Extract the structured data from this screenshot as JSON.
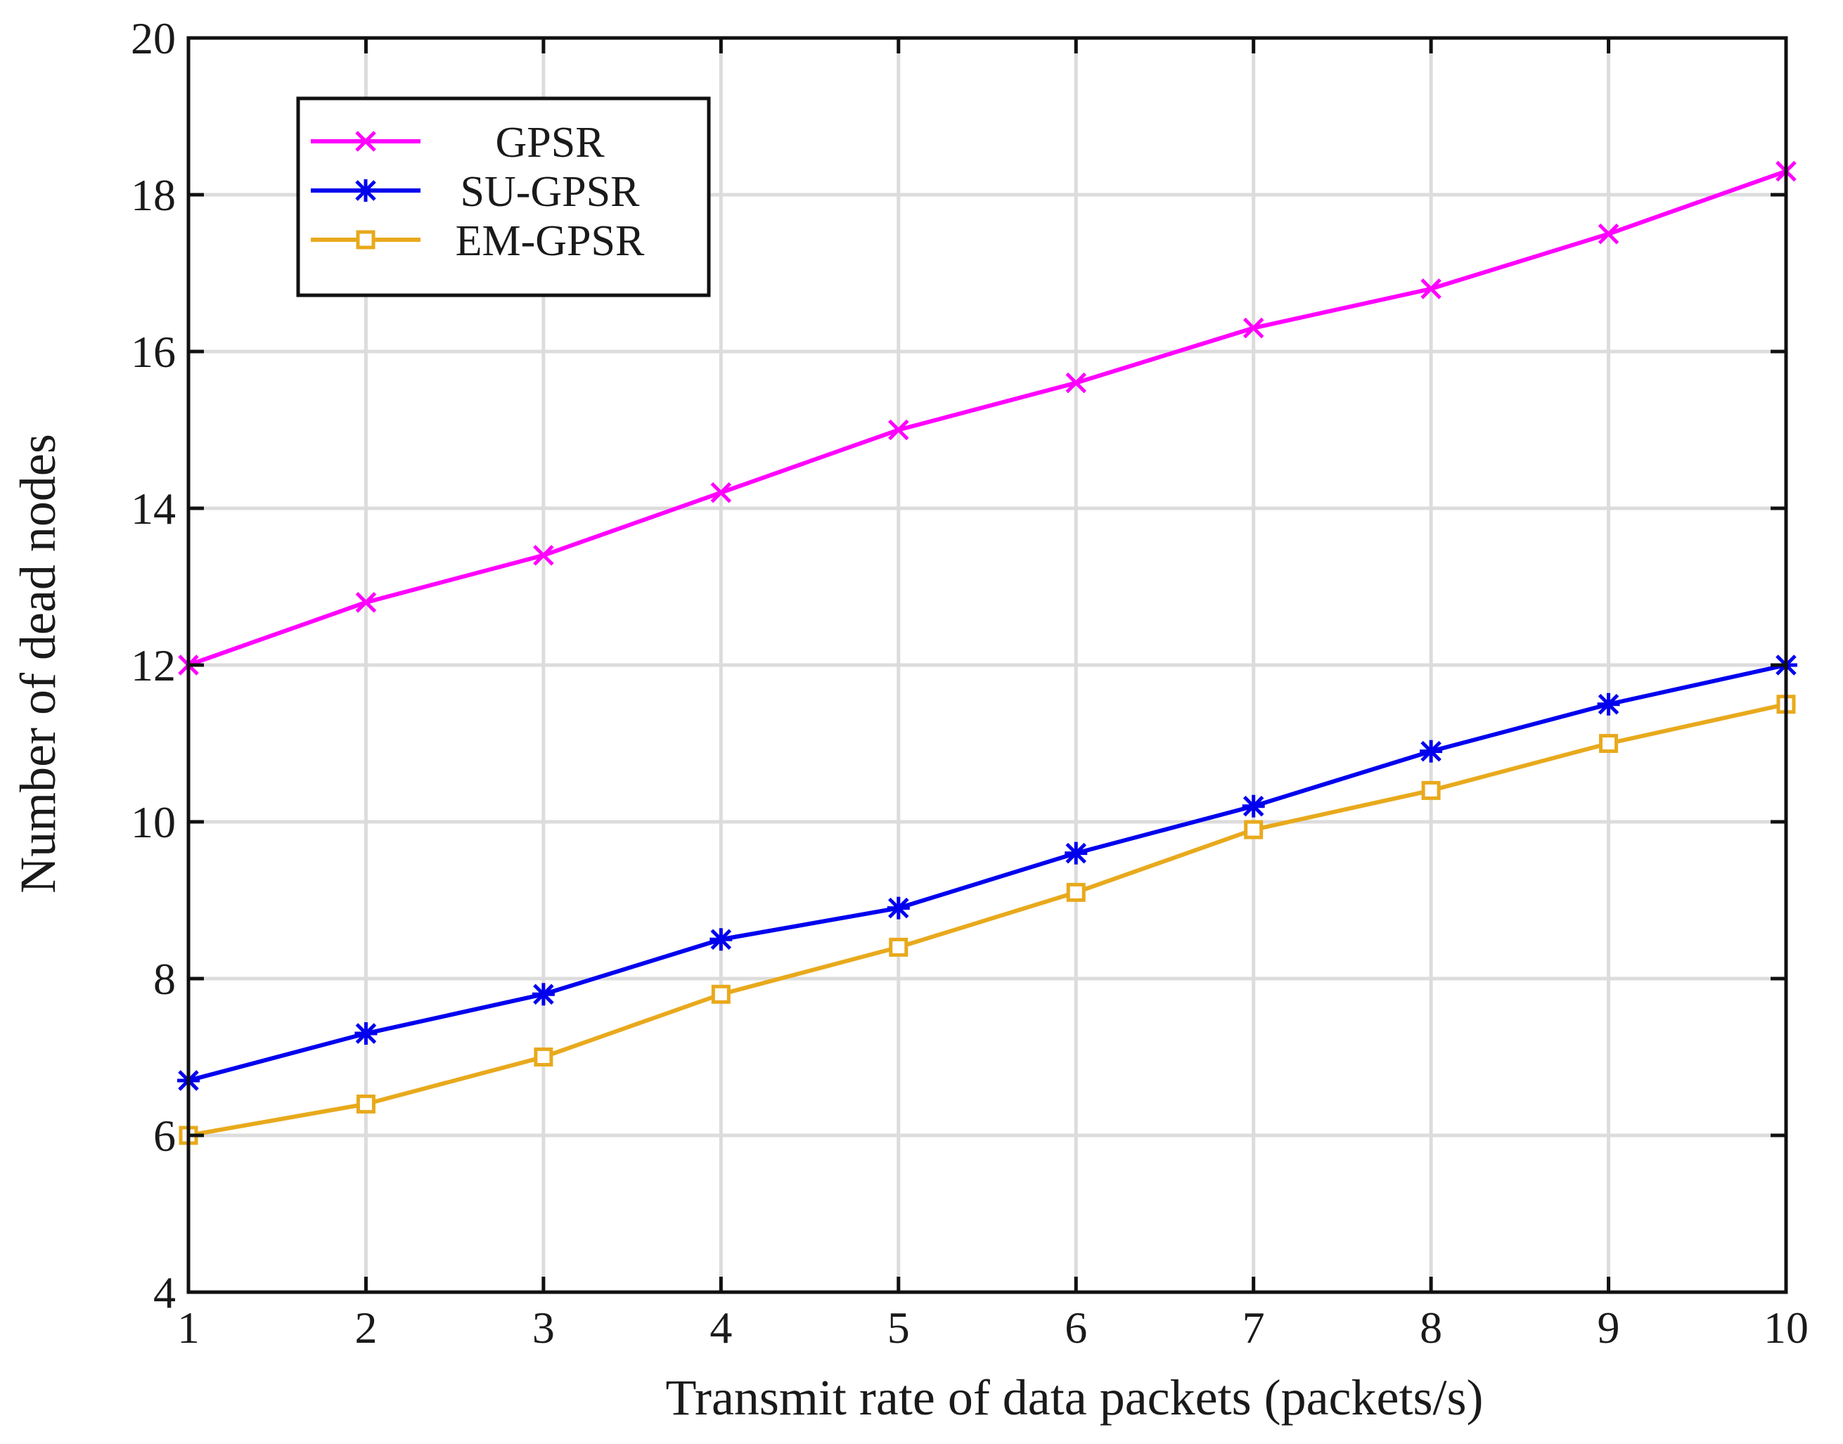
{
  "chart_data": {
    "type": "line",
    "title": "",
    "xlabel": "Transmit rate of data packets (packets/s)",
    "ylabel": "Number of dead nodes",
    "xlim": [
      1,
      10
    ],
    "ylim": [
      4,
      20
    ],
    "xticks": [
      1,
      2,
      3,
      4,
      5,
      6,
      7,
      8,
      9,
      10
    ],
    "yticks": [
      4,
      6,
      8,
      10,
      12,
      14,
      16,
      18,
      20
    ],
    "grid": true,
    "legend_position": "top-left",
    "x": [
      1,
      2,
      3,
      4,
      5,
      6,
      7,
      8,
      9,
      10
    ],
    "series": [
      {
        "name": "GPSR",
        "color": "#ff00ff",
        "marker": "x-marker",
        "values": [
          12.0,
          12.8,
          13.4,
          14.2,
          15.0,
          15.6,
          16.3,
          16.8,
          17.5,
          18.3
        ]
      },
      {
        "name": "SU-GPSR",
        "color": "#0000ee",
        "marker": "asterisk-marker",
        "values": [
          6.7,
          7.3,
          7.8,
          8.5,
          8.9,
          9.6,
          10.2,
          10.9,
          11.5,
          12.0
        ]
      },
      {
        "name": "EM-GPSR",
        "color": "#e8a91c",
        "marker": "square-marker",
        "values": [
          6.0,
          6.4,
          7.0,
          7.8,
          8.4,
          9.1,
          9.9,
          10.4,
          11.0,
          11.5
        ]
      }
    ]
  }
}
